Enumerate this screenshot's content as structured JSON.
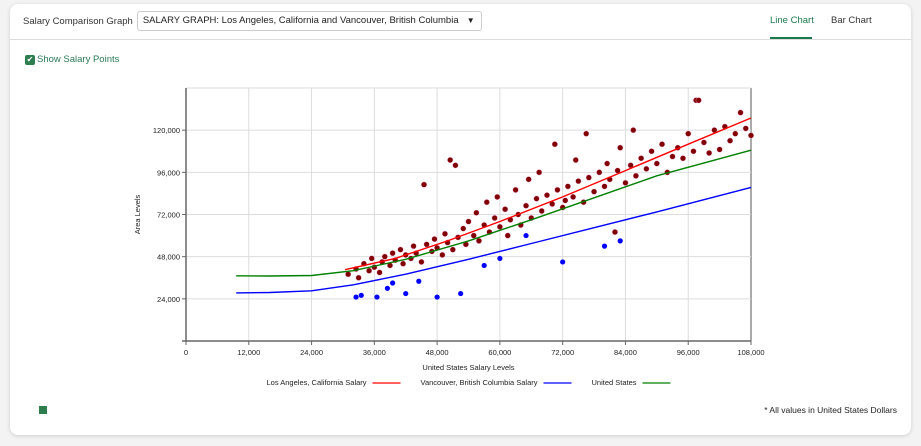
{
  "header": {
    "label": "Salary Comparison Graph",
    "select_value": "SALARY GRAPH: Los Angeles, California and Vancouver, British Columbia",
    "tabs": [
      {
        "label": "Line Chart",
        "active": true
      },
      {
        "label": "Bar Chart",
        "active": false
      }
    ]
  },
  "options": {
    "show_points_label": "Show Salary Points",
    "show_points_checked": true
  },
  "footer": {
    "note": "* All values in United States Dollars",
    "icon": "bar-chart-icon"
  },
  "colors": {
    "accent": "#1a7a4c",
    "points": "#800000",
    "outliers": "#0000ff"
  },
  "chart_data": {
    "type": "line",
    "xlabel": "United States Salary Levels",
    "ylabel": "Area Levels",
    "xlim": [
      0,
      108000
    ],
    "ylim": [
      0,
      144000
    ],
    "xticks": [
      "0",
      "12,000",
      "24,000",
      "36,000",
      "48,000",
      "60,000",
      "72,000",
      "84,000",
      "96,000",
      "108,000"
    ],
    "yticks": [
      "24,000",
      "48,000",
      "72,000",
      "96,000",
      "120,000"
    ],
    "grid": true,
    "legend_position": "bottom",
    "series": [
      {
        "name": "Los Angeles, California Salary",
        "color": "#ff0000",
        "points": [
          [
            30400,
            40600
          ],
          [
            40000,
            47000
          ],
          [
            50000,
            57000
          ],
          [
            60000,
            68000
          ],
          [
            72000,
            82000
          ],
          [
            84000,
            97000
          ],
          [
            96000,
            112000
          ],
          [
            108000,
            126900
          ]
        ]
      },
      {
        "name": "Vancouver, British Columbia Salary",
        "color": "#0000ff",
        "points": [
          [
            9600,
            27400
          ],
          [
            16000,
            27600
          ],
          [
            24000,
            28600
          ],
          [
            32000,
            32000
          ],
          [
            42000,
            38000
          ],
          [
            54000,
            46500
          ],
          [
            66000,
            55500
          ],
          [
            78000,
            64500
          ],
          [
            90000,
            73500
          ],
          [
            108000,
            87400
          ]
        ]
      },
      {
        "name": "United States",
        "color": "#008000",
        "points": [
          [
            9600,
            37100
          ],
          [
            16000,
            37000
          ],
          [
            24000,
            37300
          ],
          [
            32000,
            40000
          ],
          [
            42000,
            46500
          ],
          [
            54000,
            57000
          ],
          [
            66000,
            69000
          ],
          [
            78000,
            81500
          ],
          [
            90000,
            94000
          ],
          [
            108000,
            108600
          ]
        ]
      }
    ],
    "salary_points": [
      [
        31000,
        38000
      ],
      [
        32500,
        41000
      ],
      [
        33000,
        36000
      ],
      [
        34000,
        44000
      ],
      [
        35000,
        40000
      ],
      [
        35500,
        47000
      ],
      [
        36000,
        42000
      ],
      [
        37000,
        39000
      ],
      [
        37500,
        45000
      ],
      [
        38000,
        48000
      ],
      [
        39000,
        43000
      ],
      [
        39500,
        50000
      ],
      [
        40000,
        46000
      ],
      [
        41000,
        52000
      ],
      [
        41500,
        44000
      ],
      [
        42000,
        49000
      ],
      [
        43000,
        47000
      ],
      [
        43500,
        54000
      ],
      [
        44000,
        50000
      ],
      [
        45000,
        45000
      ],
      [
        45500,
        89000
      ],
      [
        46000,
        55000
      ],
      [
        47000,
        51000
      ],
      [
        47500,
        58000
      ],
      [
        48000,
        53000
      ],
      [
        49000,
        49000
      ],
      [
        49500,
        61000
      ],
      [
        50000,
        56000
      ],
      [
        50500,
        103000
      ],
      [
        51000,
        52000
      ],
      [
        51500,
        100000
      ],
      [
        52000,
        59000
      ],
      [
        53000,
        64000
      ],
      [
        53500,
        55000
      ],
      [
        54000,
        68000
      ],
      [
        55000,
        60000
      ],
      [
        55500,
        73000
      ],
      [
        56000,
        57000
      ],
      [
        57000,
        66000
      ],
      [
        57500,
        79000
      ],
      [
        58000,
        62000
      ],
      [
        59000,
        70000
      ],
      [
        59500,
        82000
      ],
      [
        60000,
        65000
      ],
      [
        61000,
        75000
      ],
      [
        61500,
        60000
      ],
      [
        62000,
        69000
      ],
      [
        63000,
        86000
      ],
      [
        63500,
        72000
      ],
      [
        64000,
        66000
      ],
      [
        65000,
        77000
      ],
      [
        65500,
        92000
      ],
      [
        66000,
        70000
      ],
      [
        67000,
        81000
      ],
      [
        67500,
        96000
      ],
      [
        68000,
        74000
      ],
      [
        69000,
        83000
      ],
      [
        70000,
        78000
      ],
      [
        70500,
        112000
      ],
      [
        71000,
        86000
      ],
      [
        72000,
        76000
      ],
      [
        72500,
        80000
      ],
      [
        73000,
        88000
      ],
      [
        74000,
        82000
      ],
      [
        74500,
        103000
      ],
      [
        75000,
        91000
      ],
      [
        76000,
        79000
      ],
      [
        76500,
        118000
      ],
      [
        77000,
        93000
      ],
      [
        78000,
        85000
      ],
      [
        79000,
        96000
      ],
      [
        80000,
        88000
      ],
      [
        80500,
        101000
      ],
      [
        81000,
        92000
      ],
      [
        82000,
        62000
      ],
      [
        82500,
        97000
      ],
      [
        83000,
        110000
      ],
      [
        84000,
        90000
      ],
      [
        85000,
        100000
      ],
      [
        85500,
        120000
      ],
      [
        86000,
        94000
      ],
      [
        87000,
        104000
      ],
      [
        88000,
        98000
      ],
      [
        89000,
        108000
      ],
      [
        90000,
        101000
      ],
      [
        91000,
        112000
      ],
      [
        92000,
        96000
      ],
      [
        93000,
        105000
      ],
      [
        94000,
        110000
      ],
      [
        95000,
        104000
      ],
      [
        96000,
        118000
      ],
      [
        97000,
        108000
      ],
      [
        97500,
        137000
      ],
      [
        98000,
        137000
      ],
      [
        99000,
        113000
      ],
      [
        100000,
        107000
      ],
      [
        101000,
        120000
      ],
      [
        102000,
        109000
      ],
      [
        103000,
        122000
      ],
      [
        104000,
        114000
      ],
      [
        105000,
        118000
      ],
      [
        106000,
        130000
      ],
      [
        107000,
        121000
      ],
      [
        108000,
        117000
      ]
    ],
    "outlier_points": [
      [
        32500,
        25000
      ],
      [
        33500,
        26000
      ],
      [
        36500,
        25000
      ],
      [
        38500,
        30000
      ],
      [
        39500,
        33000
      ],
      [
        42000,
        27000
      ],
      [
        44500,
        34000
      ],
      [
        48000,
        25000
      ],
      [
        52500,
        27000
      ],
      [
        57000,
        43000
      ],
      [
        60000,
        47000
      ],
      [
        65000,
        60000
      ],
      [
        72000,
        45000
      ],
      [
        80000,
        54000
      ],
      [
        83000,
        57000
      ]
    ]
  }
}
